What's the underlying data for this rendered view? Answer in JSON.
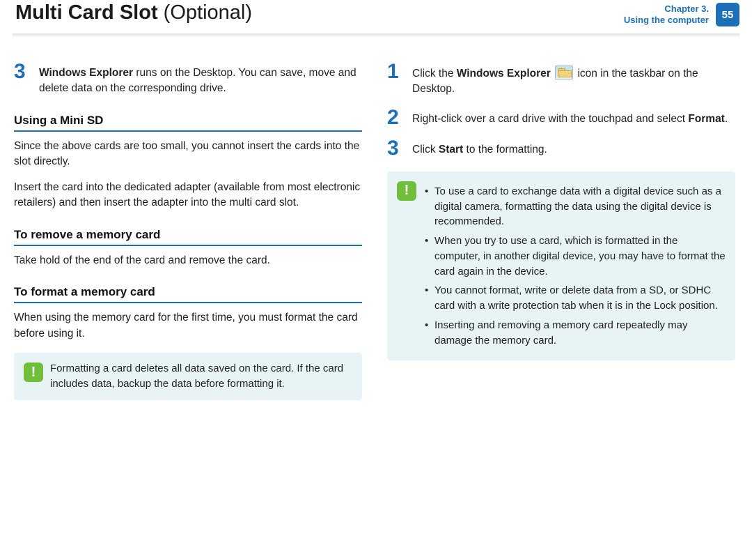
{
  "header": {
    "title_main": "Multi Card Slot",
    "title_sub": "(Optional)",
    "chapter_line1": "Chapter 3.",
    "chapter_line2": "Using the computer",
    "page_number": "55"
  },
  "left": {
    "step3": {
      "num": "3",
      "bold_lead": "Windows Explorer",
      "rest": " runs on the Desktop. You can save, move and delete data on the corresponding drive."
    },
    "sec_mini_sd": "Using a Mini SD",
    "mini_sd_p1": "Since the above cards are too small, you cannot insert the cards into the slot directly.",
    "mini_sd_p2": "Insert the card into the dedicated adapter (available from most electronic retailers) and then insert the adapter into the multi card slot.",
    "sec_remove": "To remove a memory card",
    "remove_p": "Take hold of the end of the card and remove the card.",
    "sec_format": "To format a memory card",
    "format_p": "When using the memory card for the first time, you must format the card before using it.",
    "note1": "Formatting a card deletes all data saved on the card. If the card includes data, backup the data before formatting it."
  },
  "right": {
    "step1": {
      "num": "1",
      "pre": "Click the ",
      "bold": "Windows Explorer",
      "post": " icon in the taskbar on the Desktop."
    },
    "step2": {
      "num": "2",
      "pre": "Right-click over a card drive with the touchpad and select ",
      "bold": "Format",
      "post": "."
    },
    "step3b": {
      "num": "3",
      "pre": "Click ",
      "bold": "Start",
      "post": " to the formatting."
    },
    "note2": {
      "li1": "To use a card to exchange data with a digital device such as a digital camera, formatting the data using the digital device is recommended.",
      "li2": "When you try to use a card, which is formatted in the computer, in another digital device, you may have to format the card again in the device.",
      "li3": "You cannot format, write or delete data from a SD, or SDHC card with a write protection tab when it is in the Lock position.",
      "li4": "Inserting and removing a memory card repeatedly may damage the memory card."
    }
  },
  "colors": {
    "accent": "#1d6fb8",
    "note_bg": "#e7f3f5",
    "badge_green": "#6fbf3b"
  }
}
